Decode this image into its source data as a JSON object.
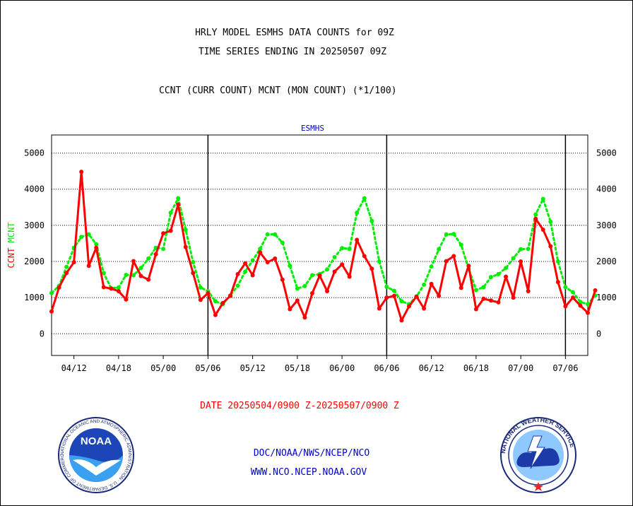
{
  "header": {
    "title_line1": "HRLY MODEL ESMHS DATA COUNTS for 09Z",
    "title_line2": "TIME SERIES ENDING IN 20250507 09Z",
    "subtitle": "CCNT (CURR COUNT) MCNT (MON COUNT) (*1/100)"
  },
  "footer": {
    "date_range": "DATE 20250504/0900 Z-20250507/0900 Z",
    "org_line": "DOC/NOAA/NWS/NCEP/NCO",
    "url_line": "WWW.NCO.NCEP.NOAA.GOV"
  },
  "logos": {
    "left": {
      "icon": "noaa-logo",
      "text": "NOAA",
      "ring_text": "NATIONAL OCEANIC AND ATMOSPHERIC ADMINISTRATION · U.S. DEPARTMENT OF COMMERCE"
    },
    "right": {
      "icon": "nws-logo",
      "ring_text": "NATIONAL WEATHER SERVICE"
    }
  },
  "chart_data": {
    "type": "line",
    "title": "ESMHS",
    "ylabel_left": "CCNT",
    "ylabel_right": "MCNT",
    "ylim": [
      -600,
      5500
    ],
    "y_ticks": [
      0,
      1000,
      2000,
      3000,
      4000,
      5000
    ],
    "x_range": [
      0,
      72
    ],
    "x_tick_labels": [
      "04/12",
      "04/18",
      "05/00",
      "05/06",
      "05/12",
      "05/18",
      "06/00",
      "06/06",
      "06/12",
      "06/18",
      "07/00",
      "07/06"
    ],
    "x_tick_positions": [
      3,
      9,
      15,
      21,
      27,
      33,
      39,
      45,
      51,
      57,
      63,
      69
    ],
    "day_boundaries": [
      21,
      45,
      69
    ],
    "grid": true,
    "colors": {
      "CCNT": "#ff0000",
      "MCNT": "#00ee00",
      "title": "#0000cc"
    },
    "series": [
      {
        "name": "CCNT",
        "style": "solid",
        "values": [
          620,
          1280,
          1680,
          1980,
          4480,
          1880,
          2380,
          1290,
          1250,
          1180,
          950,
          2010,
          1600,
          1500,
          2200,
          2780,
          2850,
          3580,
          2400,
          1680,
          940,
          1120,
          520,
          850,
          1050,
          1650,
          1950,
          1620,
          2250,
          1980,
          2080,
          1500,
          680,
          920,
          450,
          1120,
          1610,
          1180,
          1720,
          1920,
          1580,
          2600,
          2150,
          1800,
          700,
          1000,
          1050,
          370,
          760,
          1030,
          700,
          1380,
          1050,
          2010,
          2150,
          1270,
          1880,
          680,
          970,
          920,
          870,
          1580,
          1000,
          2000,
          1180,
          3180,
          2880,
          2420,
          1430,
          760,
          1000,
          780,
          580,
          1200
        ]
      },
      {
        "name": "MCNT",
        "style": "dotted",
        "values": [
          1130,
          1320,
          1850,
          2380,
          2680,
          2750,
          2480,
          1680,
          1260,
          1280,
          1630,
          1620,
          1820,
          2080,
          2380,
          2350,
          3350,
          3750,
          2880,
          1980,
          1280,
          1180,
          900,
          820,
          1060,
          1330,
          1720,
          2030,
          2350,
          2750,
          2750,
          2520,
          1880,
          1250,
          1320,
          1620,
          1650,
          1780,
          2120,
          2370,
          2350,
          3350,
          3750,
          3120,
          2000,
          1300,
          1190,
          900,
          820,
          1030,
          1360,
          1860,
          2340,
          2750,
          2760,
          2460,
          1800,
          1210,
          1290,
          1570,
          1650,
          1820,
          2090,
          2340,
          2350,
          3300,
          3730,
          3100,
          2000,
          1290,
          1150,
          880,
          820,
          1060
        ]
      }
    ]
  }
}
